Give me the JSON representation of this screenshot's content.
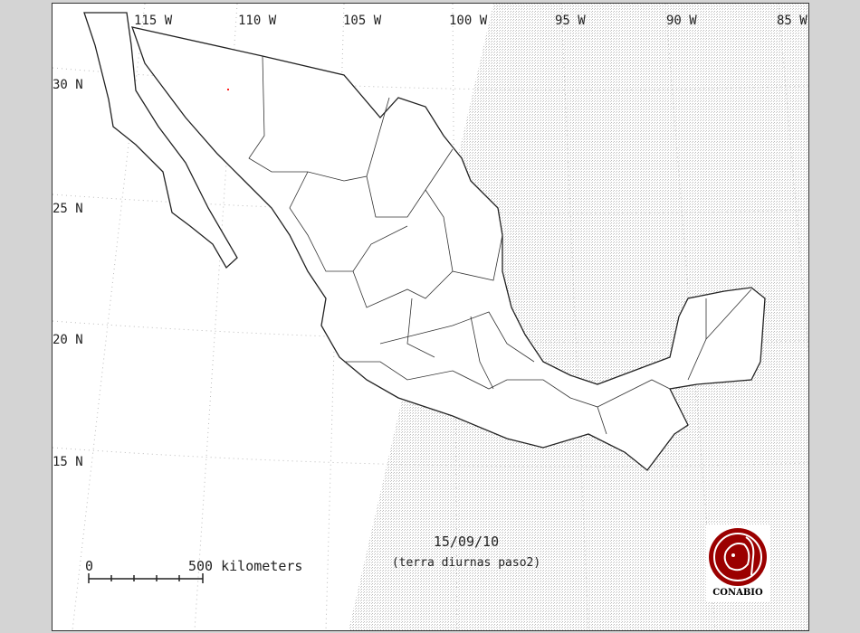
{
  "map": {
    "longitude_labels": [
      "115 W",
      "110 W",
      "105 W",
      "100 W",
      "95 W",
      "90 W",
      "85 W"
    ],
    "latitude_labels": [
      "30 N",
      "25 N",
      "20 N",
      "15 N"
    ],
    "date": "15/09/10",
    "subtitle": "(terra diurnas paso2)",
    "scale_bar": {
      "start_label": "0",
      "end_label": "500 kilometers"
    },
    "logo_text": "CONABIO",
    "colors": {
      "background": "#d4d4d4",
      "coastline": "#222222",
      "logo": "#9b0000",
      "fire_point": "#ff2020"
    }
  }
}
